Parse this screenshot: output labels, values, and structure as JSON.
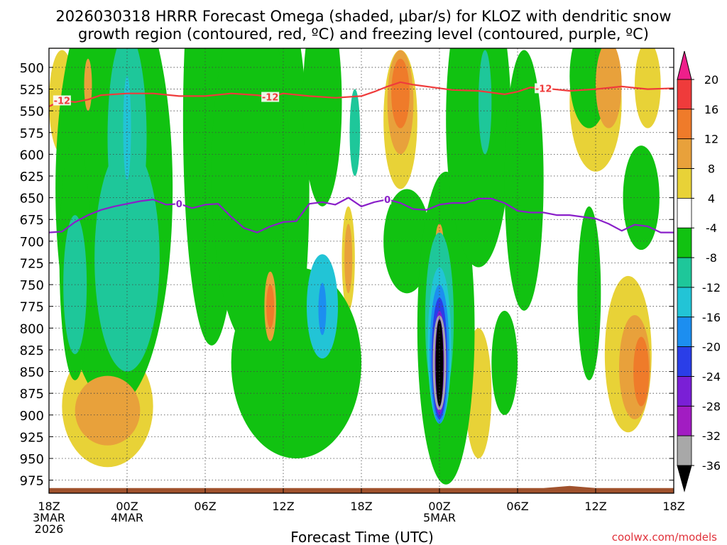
{
  "chart_data": {
    "type": "heatmap",
    "title_line1": "2026030318 HRRR Forecast Omega (shaded, μbar/s) for KLOZ with dendritic snow",
    "title_line2": "growth region (contoured, red, ºC) and freezing level (contoured, purple, ºC)",
    "xlabel": "Forecast Time (UTC)",
    "credit": "coolwx.com/models",
    "x_range_hours": [
      0,
      48
    ],
    "y_range_mb": [
      478,
      990
    ],
    "x_ticks": [
      {
        "hour": 0,
        "lines": [
          "18Z",
          "3MAR",
          "2026"
        ]
      },
      {
        "hour": 6,
        "lines": [
          "00Z",
          "4MAR"
        ]
      },
      {
        "hour": 12,
        "lines": [
          "06Z"
        ]
      },
      {
        "hour": 18,
        "lines": [
          "12Z"
        ]
      },
      {
        "hour": 24,
        "lines": [
          "18Z"
        ]
      },
      {
        "hour": 30,
        "lines": [
          "00Z",
          "5MAR"
        ]
      },
      {
        "hour": 36,
        "lines": [
          "06Z"
        ]
      },
      {
        "hour": 42,
        "lines": [
          "12Z"
        ]
      },
      {
        "hour": 48,
        "lines": [
          "18Z"
        ]
      }
    ],
    "y_ticks": [
      500,
      525,
      550,
      575,
      600,
      625,
      650,
      675,
      700,
      725,
      750,
      775,
      800,
      825,
      850,
      875,
      900,
      925,
      950,
      975
    ],
    "colorbar": {
      "labels": [
        "20",
        "16",
        "12",
        "8",
        "4",
        "-4",
        "-8",
        "-12",
        "-16",
        "-20",
        "-24",
        "-28",
        "-32",
        "-36"
      ],
      "bins": [
        {
          "range": "> 20",
          "color": "#ee1f8b"
        },
        {
          "range": "16 to 20",
          "color": "#ef3b3b"
        },
        {
          "range": "12 to 16",
          "color": "#ef7b2a"
        },
        {
          "range": "8 to 12",
          "color": "#e8a13b"
        },
        {
          "range": "4 to 8",
          "color": "#e8d237"
        },
        {
          "range": "-4 to 4",
          "color": "#ffffff"
        },
        {
          "range": "-8 to -4",
          "color": "#11c211"
        },
        {
          "range": "-12 to -8",
          "color": "#1ec79a"
        },
        {
          "range": "-16 to -12",
          "color": "#22c4d6"
        },
        {
          "range": "-20 to -16",
          "color": "#1c8ef0"
        },
        {
          "range": "-24 to -20",
          "color": "#2a3ee8"
        },
        {
          "range": "-28 to -24",
          "color": "#7a1fd6"
        },
        {
          "range": "-32 to -28",
          "color": "#a21cc2"
        },
        {
          "range": "-36 to -32",
          "color": "#a8a8a8"
        },
        {
          "range": "< -36",
          "color": "#000000"
        }
      ]
    },
    "dgz_contour": {
      "label": "-12",
      "color": "#ef3b3b",
      "points_hour_mb": [
        [
          0,
          545
        ],
        [
          1,
          538
        ],
        [
          2,
          540
        ],
        [
          3,
          537
        ],
        [
          4,
          532
        ],
        [
          6,
          530
        ],
        [
          8,
          530
        ],
        [
          10,
          533
        ],
        [
          12,
          533
        ],
        [
          14,
          530
        ],
        [
          16,
          532
        ],
        [
          17,
          534
        ],
        [
          18,
          530
        ],
        [
          20,
          533
        ],
        [
          22,
          535
        ],
        [
          24,
          533
        ],
        [
          25,
          528
        ],
        [
          26,
          522
        ],
        [
          27,
          517
        ],
        [
          28,
          520
        ],
        [
          30,
          524
        ],
        [
          31,
          526
        ],
        [
          33,
          527
        ],
        [
          35,
          531
        ],
        [
          36,
          528
        ],
        [
          37,
          523
        ],
        [
          38,
          524
        ],
        [
          40,
          527
        ],
        [
          42,
          525
        ],
        [
          44,
          522
        ],
        [
          46,
          525
        ],
        [
          48,
          524
        ]
      ]
    },
    "freezing_contour": {
      "label": "0",
      "color": "#8a1fc9",
      "points_hour_mb": [
        [
          0,
          690
        ],
        [
          1,
          689
        ],
        [
          2,
          678
        ],
        [
          3,
          670
        ],
        [
          4,
          664
        ],
        [
          5,
          660
        ],
        [
          6,
          657
        ],
        [
          7,
          654
        ],
        [
          8,
          652
        ],
        [
          9,
          658
        ],
        [
          10,
          657
        ],
        [
          11,
          662
        ],
        [
          12,
          658
        ],
        [
          13,
          657
        ],
        [
          14,
          672
        ],
        [
          15,
          685
        ],
        [
          16,
          690
        ],
        [
          17,
          683
        ],
        [
          18,
          678
        ],
        [
          19,
          677
        ],
        [
          20,
          657
        ],
        [
          21,
          655
        ],
        [
          22,
          658
        ],
        [
          23,
          650
        ],
        [
          24,
          660
        ],
        [
          25,
          655
        ],
        [
          26,
          652
        ],
        [
          27,
          656
        ],
        [
          28,
          663
        ],
        [
          29,
          664
        ],
        [
          30,
          658
        ],
        [
          31,
          656
        ],
        [
          32,
          656
        ],
        [
          33,
          651
        ],
        [
          34,
          651
        ],
        [
          35,
          656
        ],
        [
          36,
          665
        ],
        [
          37,
          667
        ],
        [
          38,
          667
        ],
        [
          39,
          670
        ],
        [
          40,
          670
        ],
        [
          41,
          672
        ],
        [
          42,
          674
        ],
        [
          43,
          680
        ],
        [
          44,
          688
        ],
        [
          45,
          681
        ],
        [
          46,
          683
        ],
        [
          47,
          690
        ],
        [
          48,
          690
        ]
      ]
    },
    "omega_features": [
      {
        "level": -8,
        "hour": 5,
        "mb": 640,
        "hw": 4.5,
        "hh": 250
      },
      {
        "level": -8,
        "hour": 12.5,
        "mb": 560,
        "hw": 2.2,
        "hh": 260
      },
      {
        "level": -8,
        "hour": 2,
        "mb": 720,
        "hw": 1.2,
        "hh": 140
      },
      {
        "level": -12,
        "hour": 6,
        "mb": 720,
        "hw": 2.5,
        "hh": 130
      },
      {
        "level": -12,
        "hour": 2,
        "mb": 750,
        "hw": 0.9,
        "hh": 80
      },
      {
        "level": -12,
        "hour": 6,
        "mb": 580,
        "hw": 1.5,
        "hh": 120
      },
      {
        "level": -16,
        "hour": 6,
        "mb": 570,
        "hw": 0.3,
        "hh": 60
      },
      {
        "level": -8,
        "hour": 17.5,
        "mb": 640,
        "hw": 2.5,
        "hh": 240
      },
      {
        "level": -8,
        "hour": 19,
        "mb": 840,
        "hw": 5,
        "hh": 110
      },
      {
        "level": -8,
        "hour": 21,
        "mb": 540,
        "hw": 1.5,
        "hh": 120
      },
      {
        "level": -8,
        "hour": 15.5,
        "mb": 620,
        "hw": 3,
        "hh": 200
      },
      {
        "level": -8,
        "hour": 27.5,
        "mb": 700,
        "hw": 1.8,
        "hh": 60
      },
      {
        "level": -8,
        "hour": 30.5,
        "mb": 800,
        "hw": 2.2,
        "hh": 180
      },
      {
        "level": -8,
        "hour": 33,
        "mb": 560,
        "hw": 2.5,
        "hh": 170
      },
      {
        "level": -8,
        "hour": 36.5,
        "mb": 630,
        "hw": 1.5,
        "hh": 150
      },
      {
        "level": -8,
        "hour": 35,
        "mb": 840,
        "hw": 1,
        "hh": 60
      },
      {
        "level": -8,
        "hour": 41.5,
        "mb": 510,
        "hw": 1.5,
        "hh": 60
      },
      {
        "level": -8,
        "hour": 41.5,
        "mb": 760,
        "hw": 0.9,
        "hh": 100
      },
      {
        "level": -8,
        "hour": 45.5,
        "mb": 650,
        "hw": 1.4,
        "hh": 60
      },
      {
        "level": -12,
        "hour": 23.5,
        "mb": 575,
        "hw": 0.4,
        "hh": 50
      },
      {
        "level": -12,
        "hour": 30,
        "mb": 790,
        "hw": 1.1,
        "hh": 100
      },
      {
        "level": -12,
        "hour": 33.5,
        "mb": 540,
        "hw": 0.5,
        "hh": 60
      },
      {
        "level": -16,
        "hour": 21,
        "mb": 775,
        "hw": 1.2,
        "hh": 60
      },
      {
        "level": -20,
        "hour": 21,
        "mb": 778,
        "hw": 0.3,
        "hh": 30
      },
      {
        "level": -16,
        "hour": 30,
        "mb": 820,
        "hw": 0.9,
        "hh": 90
      },
      {
        "level": -20,
        "hour": 30,
        "mb": 830,
        "hw": 0.75,
        "hh": 80
      },
      {
        "level": -24,
        "hour": 30,
        "mb": 835,
        "hw": 0.6,
        "hh": 70
      },
      {
        "level": -28,
        "hour": 30,
        "mb": 840,
        "hw": 0.45,
        "hh": 60
      },
      {
        "level": -36,
        "hour": 30,
        "mb": 840,
        "hw": 0.3,
        "hh": 50
      },
      {
        "level": 4,
        "hour": 4.5,
        "mb": 890,
        "hw": 3.5,
        "hh": 70
      },
      {
        "level": 8,
        "hour": 4.5,
        "mb": 895,
        "hw": 2.5,
        "hh": 40
      },
      {
        "level": 4,
        "hour": 1,
        "mb": 540,
        "hw": 1,
        "hh": 60
      },
      {
        "level": 4,
        "hour": 3,
        "mb": 520,
        "hw": 0.5,
        "hh": 40
      },
      {
        "level": 8,
        "hour": 3,
        "mb": 520,
        "hw": 0.3,
        "hh": 30
      },
      {
        "level": 4,
        "hour": 17,
        "mb": 770,
        "hw": 0.6,
        "hh": 50
      },
      {
        "level": 8,
        "hour": 17,
        "mb": 775,
        "hw": 0.45,
        "hh": 40
      },
      {
        "level": 12,
        "hour": 17,
        "mb": 775,
        "hw": 0.3,
        "hh": 25
      },
      {
        "level": 4,
        "hour": 23,
        "mb": 720,
        "hw": 0.5,
        "hh": 60
      },
      {
        "level": 8,
        "hour": 23,
        "mb": 720,
        "hw": 0.3,
        "hh": 40
      },
      {
        "level": 4,
        "hour": 27,
        "mb": 560,
        "hw": 1.3,
        "hh": 80
      },
      {
        "level": 8,
        "hour": 27,
        "mb": 540,
        "hw": 1,
        "hh": 60
      },
      {
        "level": 12,
        "hour": 27,
        "mb": 530,
        "hw": 0.7,
        "hh": 40
      },
      {
        "level": 4,
        "hour": 30,
        "mb": 700,
        "hw": 0.6,
        "hh": 40
      },
      {
        "level": 8,
        "hour": 30,
        "mb": 700,
        "hw": 0.3,
        "hh": 20
      },
      {
        "level": 4,
        "hour": 33,
        "mb": 875,
        "hw": 1,
        "hh": 75
      },
      {
        "level": 4,
        "hour": 44.5,
        "mb": 830,
        "hw": 1.8,
        "hh": 90
      },
      {
        "level": 8,
        "hour": 45,
        "mb": 845,
        "hw": 1.2,
        "hh": 60
      },
      {
        "level": 12,
        "hour": 45.5,
        "mb": 850,
        "hw": 0.6,
        "hh": 40
      },
      {
        "level": 4,
        "hour": 42,
        "mb": 540,
        "hw": 2,
        "hh": 80
      },
      {
        "level": 8,
        "hour": 43,
        "mb": 520,
        "hw": 1,
        "hh": 50
      },
      {
        "level": 4,
        "hour": 46,
        "mb": 520,
        "hw": 1,
        "hh": 50
      }
    ]
  }
}
